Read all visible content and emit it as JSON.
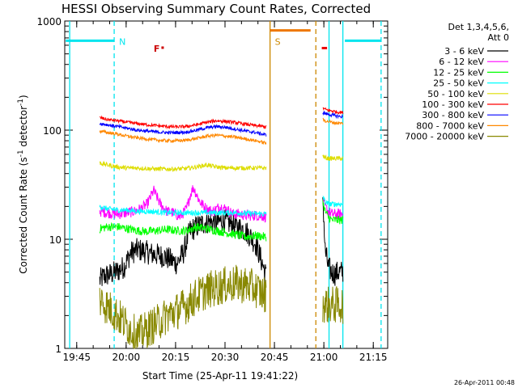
{
  "chart_data": {
    "type": "line",
    "title": "HESSI Observing Summary Count Rates, Corrected",
    "xlabel": "Start Time (25-Apr-11 19:41:22)",
    "ylabel_main": "Corrected Count Rate (s",
    "ylabel_sup": "-1",
    "ylabel_tail": " detector",
    "ylabel_close": ")",
    "x_unit": "minutes after 19:41:22",
    "xlim": [
      0,
      98
    ],
    "ylim": [
      1,
      1000
    ],
    "yscale": "log",
    "x_ticks": [
      {
        "label": "19:45",
        "value": 3.63
      },
      {
        "label": "20:00",
        "value": 18.63
      },
      {
        "label": "20:15",
        "value": 33.63
      },
      {
        "label": "20:30",
        "value": 48.63
      },
      {
        "label": "20:45",
        "value": 63.63
      },
      {
        "label": "21:00",
        "value": 78.63
      },
      {
        "label": "21:15",
        "value": 93.63
      }
    ],
    "y_ticks": [
      {
        "label": "1",
        "value": 1
      },
      {
        "label": "10",
        "value": 10
      },
      {
        "label": "100",
        "value": 100
      },
      {
        "label": "1000",
        "value": 1000
      }
    ],
    "legend_header": [
      "Det 1,3,4,5,6,",
      "Att 0"
    ],
    "legend_position": "right",
    "series": [
      {
        "name": "3 - 6 keV",
        "color": "#000000",
        "segments": [
          {
            "x": [
              10.6,
              12,
              14,
              16,
              18,
              20,
              22,
              24,
              26,
              28,
              30,
              32,
              34,
              36,
              38,
              40,
              42,
              44,
              46,
              48,
              50,
              52,
              54,
              56,
              58,
              60,
              61.2
            ],
            "y": [
              4.2,
              4.6,
              4.8,
              5.1,
              5.6,
              7.5,
              8,
              7.8,
              7.4,
              7.2,
              7,
              6.5,
              6,
              7.5,
              12,
              13,
              14,
              14.5,
              14,
              15,
              14,
              13,
              12.5,
              11,
              9,
              6,
              4.5
            ]
          },
          {
            "x": [
              78.3,
              79,
              80,
              81,
              82,
              83,
              84,
              84.5
            ],
            "y": [
              26,
              8,
              5.5,
              5,
              4.8,
              5,
              5,
              5
            ]
          }
        ]
      },
      {
        "name": "6 - 12 keV",
        "color": "#ff00ff",
        "segments": [
          {
            "x": [
              10.6,
              13,
              16,
              19,
              21,
              23,
              25,
              27,
              29,
              31,
              33,
              35,
              37,
              38,
              39,
              41,
              43,
              45,
              47,
              49,
              51,
              53,
              55,
              57,
              59,
              61.2
            ],
            "y": [
              18,
              17.5,
              17,
              17.5,
              18,
              19,
              21,
              28,
              21,
              18,
              17.5,
              16,
              19,
              25,
              30,
              22,
              19,
              18,
              20,
              19,
              17,
              17,
              16.5,
              16.5,
              16.5,
              16
            ]
          },
          {
            "x": [
              78.3,
              79,
              80,
              81,
              82,
              83,
              84.5
            ],
            "y": [
              22,
              20,
              18,
              17,
              17,
              17,
              17
            ]
          }
        ]
      },
      {
        "name": "12 - 25 keV",
        "color": "#00ff00",
        "segments": [
          {
            "x": [
              10.6,
              13,
              16,
              19,
              22,
              25,
              28,
              31,
              34,
              37,
              40,
              43,
              46,
              49,
              52,
              55,
              58,
              61.2
            ],
            "y": [
              12.5,
              13,
              13,
              12.5,
              12,
              11.8,
              12,
              12.3,
              12,
              12,
              13,
              12.5,
              12,
              11.5,
              11,
              10.5,
              10.8,
              10.5
            ]
          },
          {
            "x": [
              78.3,
              79,
              80,
              81,
              82,
              83,
              84.5
            ],
            "y": [
              22,
              18,
              16,
              15,
              15,
              15,
              15
            ]
          }
        ]
      },
      {
        "name": "25 - 50 keV",
        "color": "#00ffff",
        "segments": [
          {
            "x": [
              10.6,
              13,
              16,
              19,
              22,
              25,
              28,
              31,
              34,
              37,
              40,
              43,
              46,
              49,
              52,
              55,
              58,
              61.2
            ],
            "y": [
              20,
              19,
              18.5,
              18.5,
              18,
              18,
              17.8,
              17.5,
              17.5,
              17.5,
              17.5,
              17.5,
              17.5,
              17.5,
              17.5,
              17.3,
              17.2,
              17
            ]
          },
          {
            "x": [
              78.3,
              79,
              80,
              81,
              82,
              83,
              84.5
            ],
            "y": [
              25,
              22,
              21,
              21,
              21,
              21,
              21
            ]
          }
        ]
      },
      {
        "name": "50 - 100 keV",
        "color": "#dddd00",
        "segments": [
          {
            "x": [
              10.6,
              13,
              16,
              19,
              22,
              25,
              28,
              31,
              34,
              37,
              40,
              43,
              46,
              49,
              52,
              55,
              58,
              61.2
            ],
            "y": [
              50,
              48,
              46,
              45,
              45,
              44.5,
              44,
              44,
              44,
              44.5,
              46,
              48,
              46,
              45,
              45,
              45,
              45,
              45
            ]
          },
          {
            "x": [
              78.3,
              79,
              80,
              81,
              82,
              83,
              84.5
            ],
            "y": [
              58,
              56,
              55,
              55,
              55,
              55,
              55
            ]
          }
        ]
      },
      {
        "name": "100 - 300 keV",
        "color": "#ff0000",
        "segments": [
          {
            "x": [
              10.6,
              13,
              16,
              19,
              22,
              25,
              28,
              31,
              34,
              37,
              40,
              43,
              46,
              49,
              52,
              55,
              58,
              61.2
            ],
            "y": [
              130,
              125,
              122,
              118,
              115,
              112,
              110,
              108,
              107,
              108,
              112,
              118,
              122,
              120,
              117,
              113,
              110,
              107
            ]
          },
          {
            "x": [
              78.3,
              79,
              80,
              81,
              82,
              83,
              84.5
            ],
            "y": [
              160,
              155,
              152,
              150,
              148,
              146,
              145
            ]
          }
        ]
      },
      {
        "name": "300 - 800 keV",
        "color": "#0000ff",
        "segments": [
          {
            "x": [
              10.6,
              13,
              16,
              19,
              22,
              25,
              28,
              31,
              34,
              37,
              40,
              43,
              46,
              49,
              52,
              55,
              58,
              61.2
            ],
            "y": [
              115,
              112,
              108,
              104,
              100,
              98,
              96,
              95,
              95,
              96,
              100,
              105,
              108,
              106,
              102,
              98,
              95,
              90
            ]
          },
          {
            "x": [
              78.3,
              79,
              80,
              81,
              82,
              83,
              84.5
            ],
            "y": [
              145,
              142,
              140,
              138,
              136,
              134,
              132
            ]
          }
        ]
      },
      {
        "name": "800 - 7000 keV",
        "color": "#ff8800",
        "segments": [
          {
            "x": [
              10.6,
              13,
              16,
              19,
              22,
              25,
              28,
              31,
              34,
              37,
              40,
              43,
              46,
              49,
              52,
              55,
              58,
              61.2
            ],
            "y": [
              98,
              95,
              92,
              88,
              85,
              83,
              81,
              80,
              80,
              81,
              84,
              88,
              90,
              88,
              86,
              83,
              80,
              76
            ]
          },
          {
            "x": [
              78.3,
              79,
              80,
              81,
              82,
              83,
              84.5
            ],
            "y": [
              125,
              122,
              120,
              118,
              117,
              116,
              115
            ]
          }
        ]
      },
      {
        "name": "7000 - 20000 keV",
        "color": "#888800",
        "segments": [
          {
            "x": [
              10.6,
              13,
              16,
              19,
              22,
              25,
              28,
              31,
              34,
              37,
              40,
              43,
              46,
              49,
              52,
              55,
              58,
              61.2
            ],
            "y": [
              2.8,
              2.4,
              2.0,
              1.6,
              1.3,
              1.5,
              1.7,
              2.0,
              2.2,
              2.5,
              3.0,
              3.4,
              3.6,
              3.8,
              3.9,
              3.8,
              3.5,
              3.0
            ]
          },
          {
            "x": [
              78.3,
              79,
              80,
              81,
              82,
              83,
              84.5
            ],
            "y": [
              2.6,
              2.5,
              2.5,
              2.5,
              2.5,
              2.5,
              2.5
            ]
          }
        ]
      }
    ],
    "markers": [
      {
        "label": "N",
        "kind": "dashed",
        "x": 15.0,
        "color": "#00e5ee"
      },
      {
        "label": "S",
        "kind": "solid",
        "x": 62.3,
        "color": "#cc8800"
      }
    ],
    "vertical_lines": [
      {
        "x": 1.5,
        "style": "solid",
        "color": "#00e5ee"
      },
      {
        "x": 15.0,
        "style": "dashed",
        "color": "#00e5ee"
      },
      {
        "x": 62.3,
        "style": "solid",
        "color": "#cc8800"
      },
      {
        "x": 76.2,
        "style": "dashed",
        "color": "#cc8800"
      },
      {
        "x": 80.2,
        "style": "solid",
        "color": "#00e5ee"
      },
      {
        "x": 84.4,
        "style": "solid",
        "color": "#00e5ee"
      },
      {
        "x": 96.0,
        "style": "dashed",
        "color": "#00e5ee"
      }
    ],
    "top_bars": [
      {
        "x0": 0.3,
        "x1": 15.0,
        "y": 660,
        "color": "#00e5ee"
      },
      {
        "x0": 62.3,
        "x1": 74.6,
        "y": 820,
        "color": "#ee7700"
      },
      {
        "x0": 85.0,
        "x1": 96.0,
        "y": 660,
        "color": "#00e5ee"
      }
    ],
    "flare_marks": [
      {
        "label": "F",
        "x": 27.0,
        "y": 560,
        "color": "#cc0000"
      }
    ],
    "flare_dots": [
      {
        "x": 29.7,
        "y": 570,
        "color": "#cc0000"
      }
    ],
    "flare_segments": [
      {
        "x0": 78.0,
        "x1": 79.6,
        "y": 565,
        "color": "#ee0000"
      }
    ],
    "footer_date": "26-Apr-2011 00:48"
  }
}
